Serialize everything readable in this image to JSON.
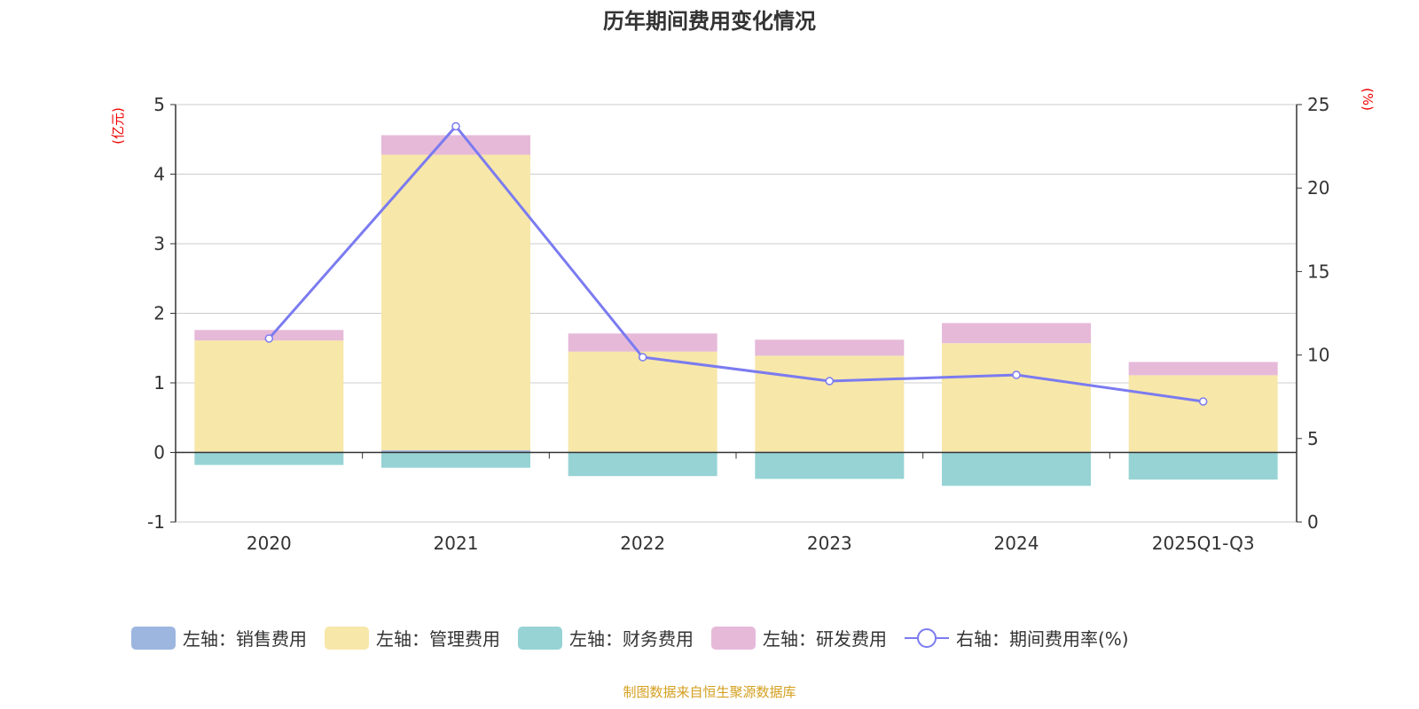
{
  "chart_data": {
    "type": "bar",
    "title": "历年期间费用变化情况",
    "categories": [
      "2020",
      "2021",
      "2022",
      "2023",
      "2024",
      "2025Q1-Q3"
    ],
    "left_axis": {
      "label": "(亿元)",
      "ylim": [
        -1,
        5
      ],
      "ticks": [
        -1,
        0,
        1,
        2,
        3,
        4,
        5
      ]
    },
    "right_axis": {
      "label": "(%)",
      "ylim": [
        0,
        25
      ],
      "ticks": [
        0,
        5,
        10,
        15,
        20,
        25
      ]
    },
    "series": [
      {
        "name": "左轴：销售费用",
        "type": "bar",
        "axis": "left",
        "color": "#9db6e0",
        "values": [
          0.01,
          0.03,
          0.01,
          0.01,
          0.01,
          0.01
        ]
      },
      {
        "name": "左轴：管理费用",
        "type": "bar",
        "axis": "left",
        "color": "#f7e7a9",
        "values": [
          1.6,
          4.25,
          1.44,
          1.38,
          1.56,
          1.1
        ]
      },
      {
        "name": "左轴：财务费用",
        "type": "bar",
        "axis": "left",
        "color": "#97d3d4",
        "values": [
          -0.18,
          -0.22,
          -0.34,
          -0.38,
          -0.48,
          -0.39
        ]
      },
      {
        "name": "左轴：研发费用",
        "type": "bar",
        "axis": "left",
        "color": "#e6b9d9",
        "values": [
          0.15,
          0.28,
          0.26,
          0.23,
          0.29,
          0.19
        ]
      },
      {
        "name": "右轴：期间费用率(%)",
        "type": "line",
        "axis": "right",
        "color": "#7b7bf0",
        "values": [
          10.99,
          23.7,
          9.87,
          8.44,
          8.81,
          7.22
        ]
      }
    ],
    "grid": true,
    "legend_position": "bottom"
  },
  "footer": "制图数据来自恒生聚源数据库"
}
